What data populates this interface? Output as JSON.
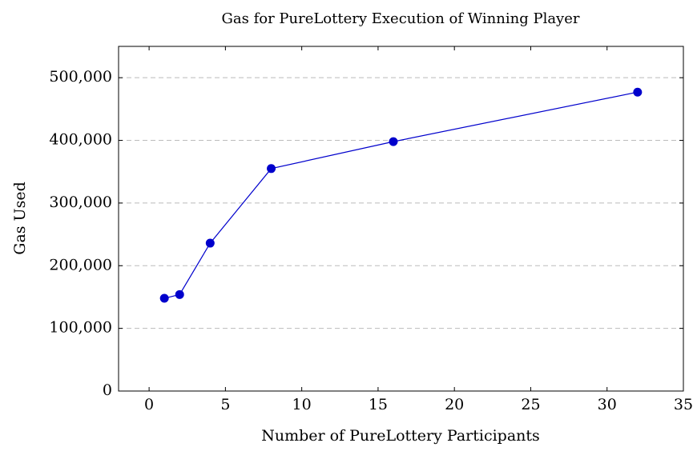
{
  "chart_data": {
    "type": "line",
    "title": "Gas for PureLottery Execution of Winning Player",
    "x_label": "Number of PureLottery Participants",
    "y_label": "Gas Used",
    "x": [
      1,
      2,
      4,
      8,
      16,
      32
    ],
    "series": [
      {
        "name": "Gas",
        "color": "#0000cc",
        "values": [
          148000,
          154000,
          236000,
          355000,
          398000,
          477000
        ]
      }
    ],
    "xlim": [
      -2,
      35
    ],
    "xticks": [
      0,
      5,
      10,
      15,
      20,
      25,
      30,
      35
    ],
    "ylim": [
      0,
      550000
    ],
    "yticks": [
      0,
      {
        "value": 100000,
        "label": "100,000"
      },
      {
        "value": 200000,
        "label": "200,000"
      },
      {
        "value": 300000,
        "label": "300,000"
      },
      {
        "value": 400000,
        "label": "400,000"
      },
      {
        "value": 500000,
        "label": "500,000"
      }
    ],
    "grid": true
  }
}
